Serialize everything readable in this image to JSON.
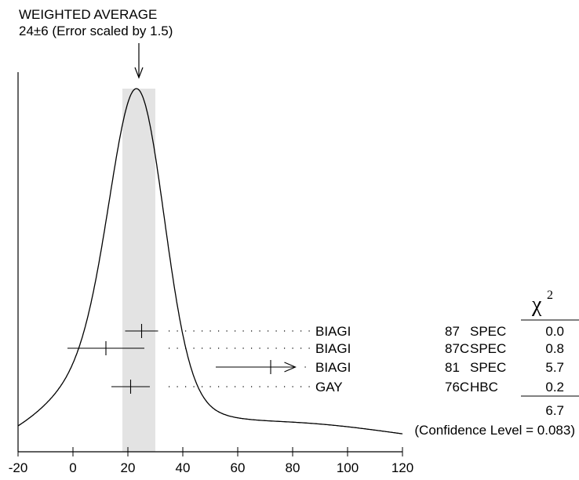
{
  "chart_data": {
    "type": "ideogram",
    "title_line1": "WEIGHTED AVERAGE",
    "title_line2": "24±6 (Error scaled by 1.5)",
    "weighted_average": {
      "value": 24,
      "error": 6,
      "error_scale": 1.5
    },
    "x_ticks": [
      "-20",
      "0",
      "20",
      "40",
      "60",
      "80",
      "100",
      "120"
    ],
    "x_tick_values": [
      -20,
      0,
      20,
      40,
      60,
      80,
      100,
      120
    ],
    "xlim": [
      -20,
      120
    ],
    "chi2_header": "χ",
    "chi2_header_sup": "2",
    "measurements": [
      {
        "name": "BIAGI",
        "year": "87",
        "tech": "SPEC",
        "chi2": "0.0",
        "value": 25,
        "lo": 19,
        "hi": 31,
        "lower_limit": false
      },
      {
        "name": "BIAGI",
        "year": "87C",
        "tech": "SPEC",
        "chi2": "0.8",
        "value": 12,
        "lo": -2,
        "hi": 26,
        "lower_limit": false
      },
      {
        "name": "BIAGI",
        "year": "81",
        "tech": "SPEC",
        "chi2": "5.7",
        "value": 72,
        "lo": 52,
        "hi": 81,
        "lower_limit": true
      },
      {
        "name": "GAY",
        "year": "76C",
        "tech": "HBC",
        "chi2": "0.2",
        "value": 21,
        "lo": 14,
        "hi": 28,
        "lower_limit": false
      }
    ],
    "chi2_total": "6.7",
    "confidence_level": "(Confidence Level = 0.083)"
  }
}
